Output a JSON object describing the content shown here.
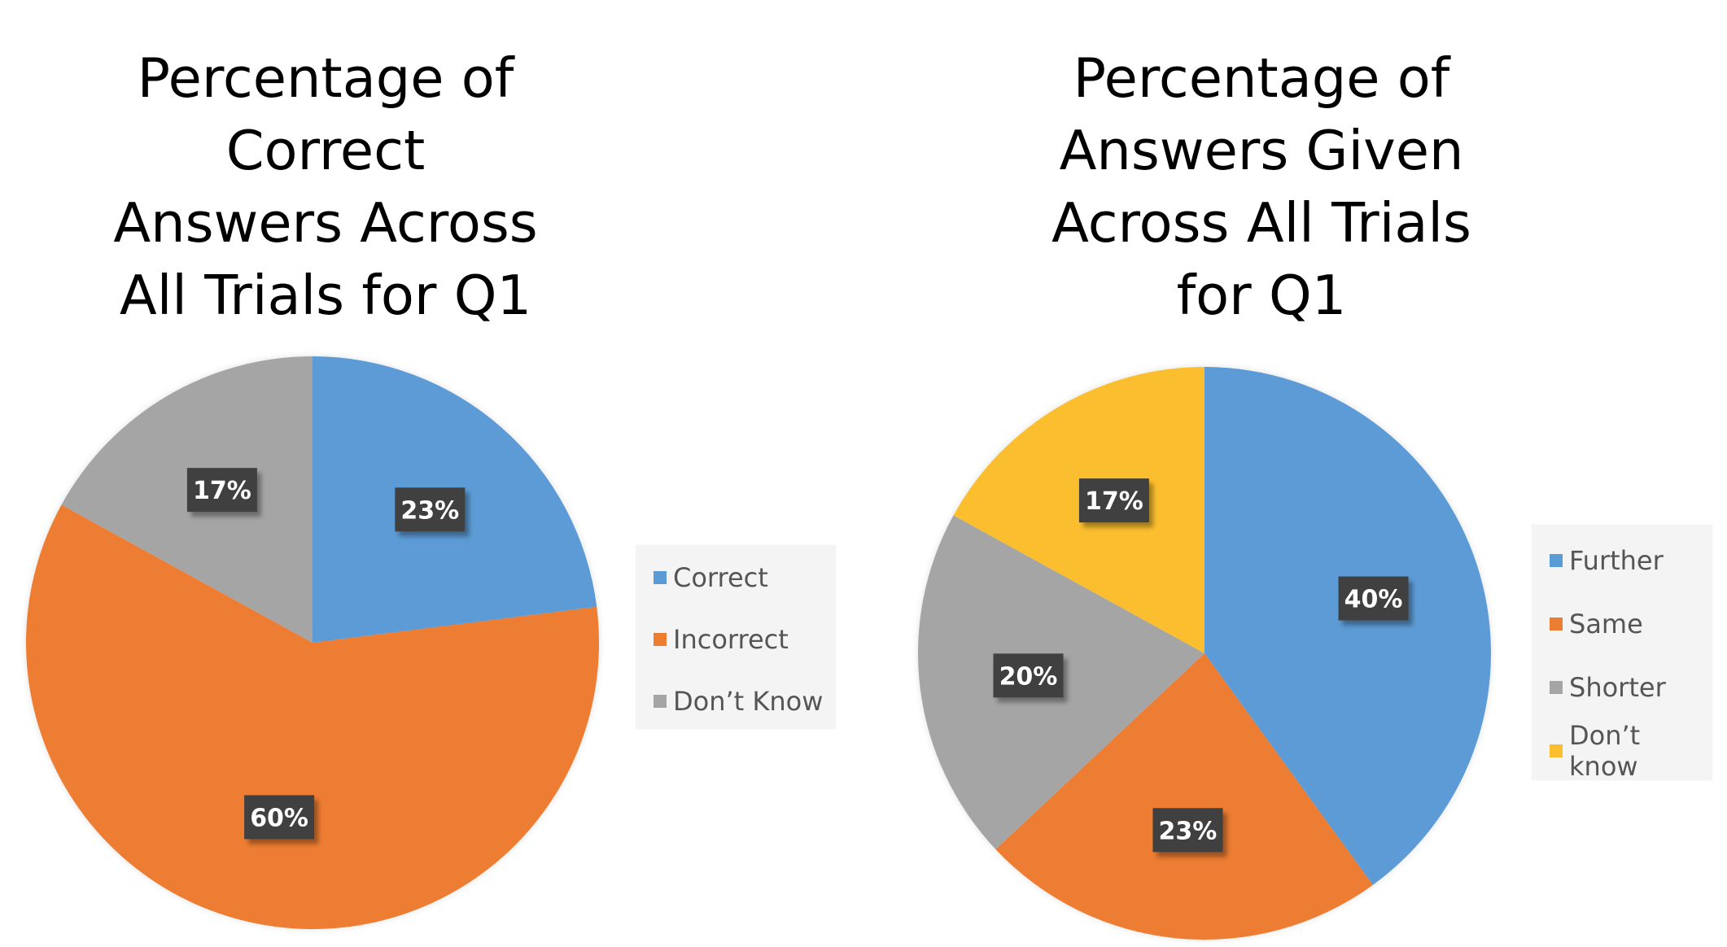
{
  "chart_data": [
    {
      "type": "pie",
      "title_lines": [
        "Percentage of",
        "Correct",
        "Answers Across",
        "All Trials for Q1"
      ],
      "categories": [
        "Correct",
        "Incorrect",
        "Don’t Know"
      ],
      "values": [
        23,
        60,
        17
      ],
      "labels": [
        "23%",
        "60%",
        "17%"
      ],
      "colors": [
        "#5b9bd5",
        "#ed7d31",
        "#a5a5a5"
      ],
      "legend_position": "right"
    },
    {
      "type": "pie",
      "title_lines": [
        "Percentage of",
        "Answers Given",
        "Across All Trials",
        "for Q1"
      ],
      "categories": [
        "Further",
        "Same",
        "Shorter",
        "Don’t know"
      ],
      "values": [
        40,
        23,
        20,
        17
      ],
      "labels": [
        "40%",
        "23%",
        "20%",
        "17%"
      ],
      "colors": [
        "#5b9bd5",
        "#ed7d31",
        "#a5a5a5",
        "#fbbe2e"
      ],
      "legend_position": "right"
    }
  ]
}
